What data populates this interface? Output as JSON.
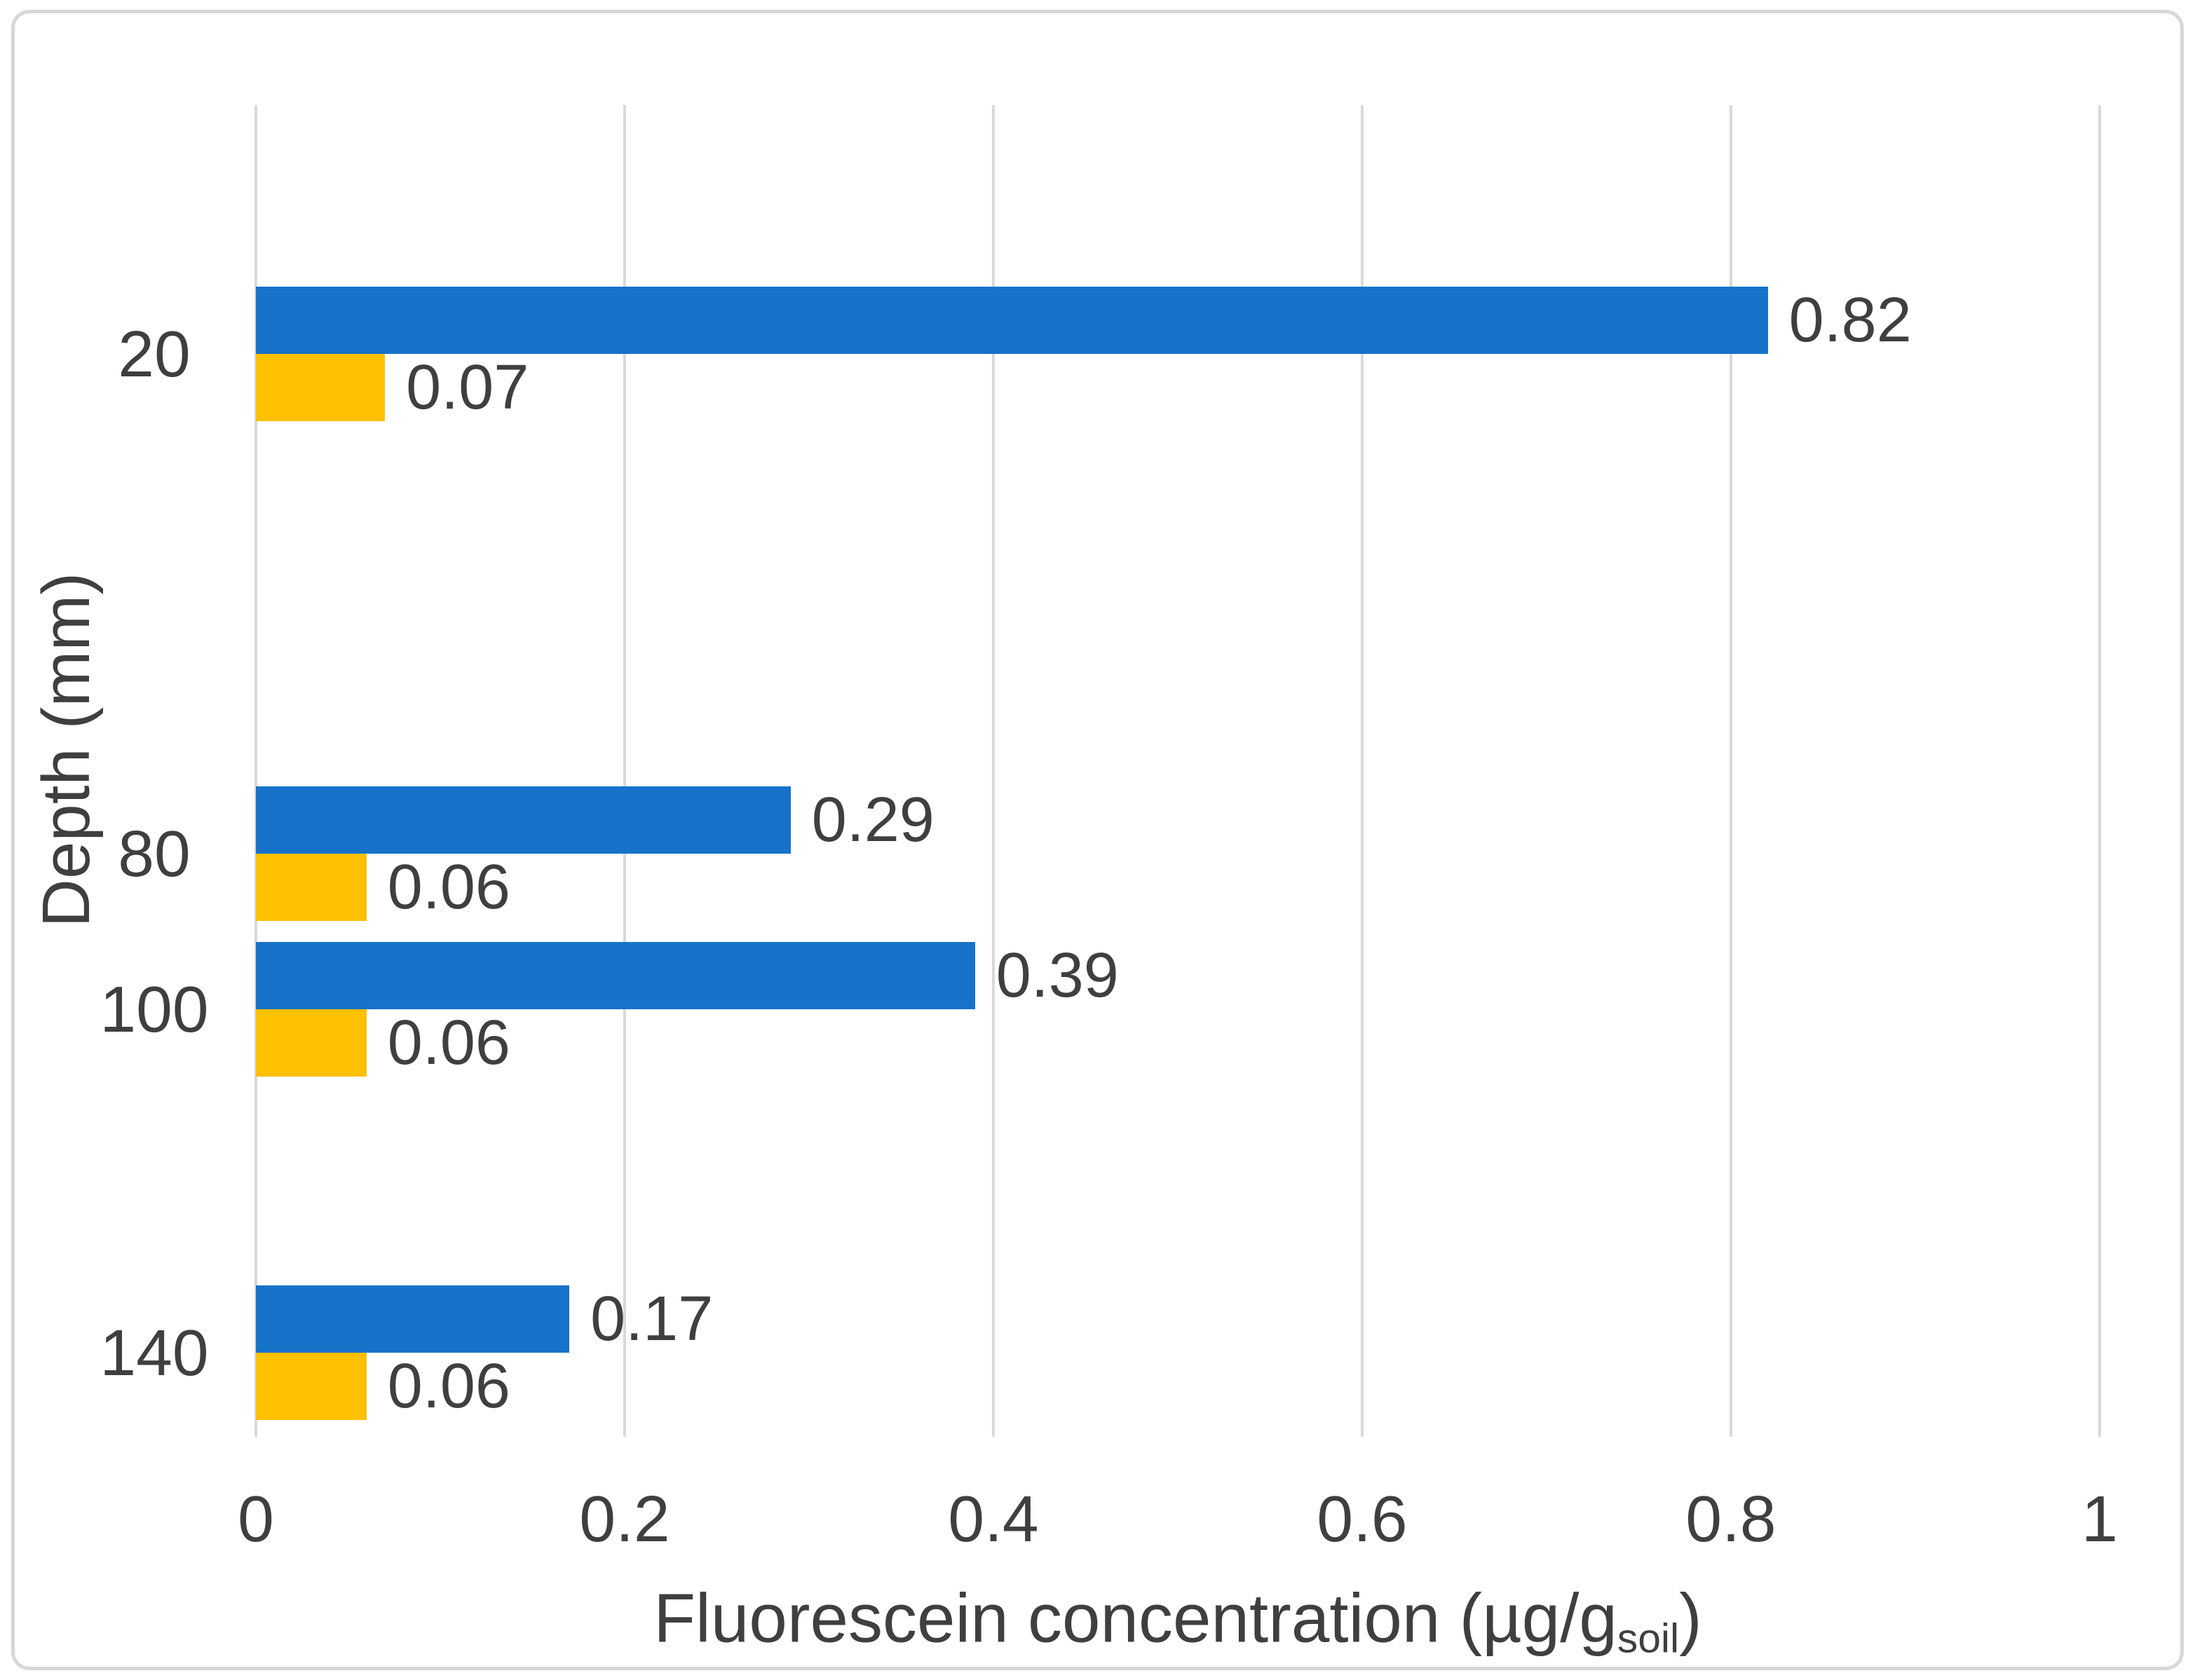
{
  "chart_data": {
    "type": "bar",
    "orientation": "horizontal",
    "title": "",
    "ylabel": "Depth (mm)",
    "xlabel_prefix": "Fluorescein concentration (µg/g",
    "xlabel_sub": "soil",
    "xlabel_suffix": ")",
    "categories": [
      "20",
      "80",
      "100",
      "140"
    ],
    "category_values_mm": [
      20,
      80,
      100,
      140
    ],
    "series": [
      {
        "name": "blue-series",
        "color": "#1673C9",
        "values": [
          0.82,
          0.29,
          0.39,
          0.17
        ]
      },
      {
        "name": "yellow-series",
        "color": "#FFC000",
        "values": [
          0.07,
          0.06,
          0.06,
          0.06
        ]
      }
    ],
    "data_labels": [
      [
        "0.82",
        "0.29",
        "0.39",
        "0.17"
      ],
      [
        "0.07",
        "0.06",
        "0.06",
        "0.06"
      ]
    ],
    "x_ticks": [
      "0",
      "0.2",
      "0.4",
      "0.6",
      "0.8",
      "1"
    ],
    "x_tick_values": [
      0,
      0.2,
      0.4,
      0.6,
      0.8,
      1
    ],
    "xlim": [
      0,
      1
    ],
    "grid": "vertical",
    "legend": "none",
    "label_color": "#3f3f3f",
    "gridline_color": "#D9D9D9",
    "frame_border_color": "#D7D7D7",
    "background_color": "#FFFFFF"
  }
}
